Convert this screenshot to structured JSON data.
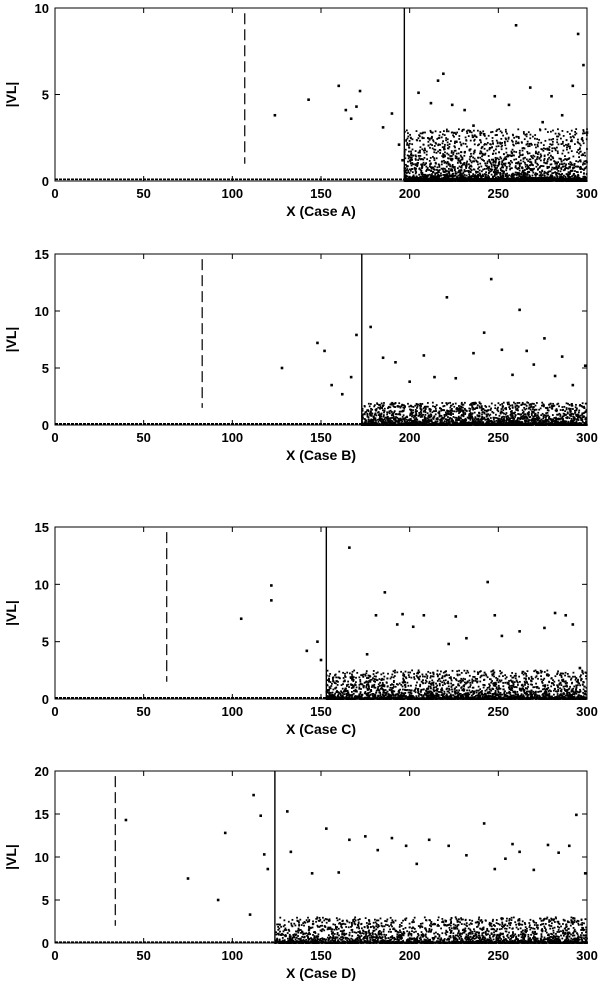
{
  "chart_data": [
    {
      "type": "scatter",
      "xlabel": "X (Case A)",
      "ylabel": "|VL|",
      "xlim": [
        0,
        300
      ],
      "ylim": [
        0,
        10
      ],
      "xticks": [
        0,
        50,
        100,
        150,
        200,
        250,
        300
      ],
      "yticks": [
        0,
        5,
        10
      ],
      "dashed_vline_x": 107,
      "solid_vline_x": 197,
      "baseline_y": 0.1,
      "points": [
        [
          124,
          3.8
        ],
        [
          143,
          4.7
        ],
        [
          160,
          5.5
        ],
        [
          164,
          4.1
        ],
        [
          167,
          3.6
        ],
        [
          170,
          4.3
        ],
        [
          172,
          5.2
        ],
        [
          185,
          3.1
        ],
        [
          190,
          3.9
        ],
        [
          194,
          2.1
        ],
        [
          196,
          1.2
        ],
        [
          205,
          5.1
        ],
        [
          212,
          4.5
        ],
        [
          216,
          5.8
        ],
        [
          219,
          6.2
        ],
        [
          224,
          4.4
        ],
        [
          231,
          4.1
        ],
        [
          236,
          3.2
        ],
        [
          242,
          2.7
        ],
        [
          248,
          4.9
        ],
        [
          256,
          4.4
        ],
        [
          260,
          9.0
        ],
        [
          268,
          5.4
        ],
        [
          275,
          3.4
        ],
        [
          280,
          4.9
        ],
        [
          286,
          3.8
        ],
        [
          292,
          5.5
        ],
        [
          295,
          8.5
        ],
        [
          298,
          6.7
        ],
        [
          300,
          2.8
        ]
      ],
      "dense_region": {
        "x_range": [
          197,
          300
        ],
        "y_range": [
          0,
          3
        ]
      }
    },
    {
      "type": "scatter",
      "xlabel": "X (Case B)",
      "ylabel": "|VL|",
      "xlim": [
        0,
        300
      ],
      "ylim": [
        0,
        15
      ],
      "xticks": [
        0,
        50,
        100,
        150,
        200,
        250,
        300
      ],
      "yticks": [
        0,
        5,
        10,
        15
      ],
      "dashed_vline_x": 83,
      "solid_vline_x": 173,
      "baseline_y": 0.1,
      "points": [
        [
          128,
          5.0
        ],
        [
          148,
          7.2
        ],
        [
          152,
          6.5
        ],
        [
          156,
          3.5
        ],
        [
          162,
          2.7
        ],
        [
          167,
          4.2
        ],
        [
          170,
          7.9
        ],
        [
          178,
          8.6
        ],
        [
          185,
          5.9
        ],
        [
          192,
          5.5
        ],
        [
          200,
          3.8
        ],
        [
          208,
          6.1
        ],
        [
          214,
          4.2
        ],
        [
          221,
          11.2
        ],
        [
          226,
          4.1
        ],
        [
          236,
          6.3
        ],
        [
          242,
          8.1
        ],
        [
          246,
          12.8
        ],
        [
          252,
          6.6
        ],
        [
          258,
          4.4
        ],
        [
          262,
          10.1
        ],
        [
          266,
          6.5
        ],
        [
          270,
          5.3
        ],
        [
          276,
          7.6
        ],
        [
          282,
          4.3
        ],
        [
          286,
          6.0
        ],
        [
          292,
          3.5
        ],
        [
          299,
          5.2
        ]
      ],
      "dense_region": {
        "x_range": [
          173,
          300
        ],
        "y_range": [
          0,
          2
        ]
      }
    },
    {
      "type": "scatter",
      "xlabel": "X (Case C)",
      "ylabel": "|VL|",
      "xlim": [
        0,
        300
      ],
      "ylim": [
        0,
        15
      ],
      "xticks": [
        0,
        50,
        100,
        150,
        200,
        250,
        300
      ],
      "yticks": [
        0,
        5,
        10,
        15
      ],
      "dashed_vline_x": 63,
      "solid_vline_x": 153,
      "baseline_y": 0.1,
      "points": [
        [
          105,
          7.0
        ],
        [
          122,
          9.9
        ],
        [
          122,
          8.6
        ],
        [
          142,
          4.2
        ],
        [
          148,
          5.0
        ],
        [
          150,
          3.4
        ],
        [
          166,
          13.2
        ],
        [
          176,
          3.9
        ],
        [
          181,
          7.3
        ],
        [
          186,
          9.3
        ],
        [
          193,
          6.5
        ],
        [
          196,
          7.4
        ],
        [
          202,
          6.3
        ],
        [
          208,
          7.3
        ],
        [
          222,
          4.8
        ],
        [
          226,
          7.2
        ],
        [
          232,
          5.3
        ],
        [
          244,
          10.2
        ],
        [
          248,
          7.3
        ],
        [
          252,
          5.5
        ],
        [
          262,
          5.9
        ],
        [
          276,
          6.2
        ],
        [
          282,
          7.5
        ],
        [
          288,
          7.3
        ],
        [
          292,
          6.5
        ],
        [
          296,
          2.7
        ]
      ],
      "dense_region": {
        "x_range": [
          153,
          300
        ],
        "y_range": [
          0,
          2.5
        ]
      }
    },
    {
      "type": "scatter",
      "xlabel": "X (Case D)",
      "ylabel": "|VL|",
      "xlim": [
        0,
        300
      ],
      "ylim": [
        0,
        20
      ],
      "xticks": [
        0,
        50,
        100,
        150,
        200,
        250,
        300
      ],
      "yticks": [
        0,
        5,
        10,
        15,
        20
      ],
      "dashed_vline_x": 34,
      "solid_vline_x": 124,
      "baseline_y": 0.1,
      "points": [
        [
          40,
          14.3
        ],
        [
          75,
          7.5
        ],
        [
          92,
          5.0
        ],
        [
          96,
          12.8
        ],
        [
          112,
          17.2
        ],
        [
          116,
          14.8
        ],
        [
          118,
          10.3
        ],
        [
          120,
          8.6
        ],
        [
          110,
          3.3
        ],
        [
          131,
          15.3
        ],
        [
          133,
          10.6
        ],
        [
          145,
          8.1
        ],
        [
          153,
          13.3
        ],
        [
          160,
          8.2
        ],
        [
          166,
          12.0
        ],
        [
          175,
          12.4
        ],
        [
          182,
          10.8
        ],
        [
          190,
          12.2
        ],
        [
          198,
          11.3
        ],
        [
          204,
          9.2
        ],
        [
          211,
          12.0
        ],
        [
          222,
          11.3
        ],
        [
          232,
          10.2
        ],
        [
          242,
          13.9
        ],
        [
          248,
          8.6
        ],
        [
          254,
          9.8
        ],
        [
          258,
          11.5
        ],
        [
          262,
          10.6
        ],
        [
          270,
          8.5
        ],
        [
          278,
          11.4
        ],
        [
          284,
          10.5
        ],
        [
          290,
          11.3
        ],
        [
          294,
          14.9
        ],
        [
          299,
          8.1
        ]
      ],
      "dense_region": {
        "x_range": [
          124,
          300
        ],
        "y_range": [
          0,
          3
        ]
      }
    }
  ]
}
